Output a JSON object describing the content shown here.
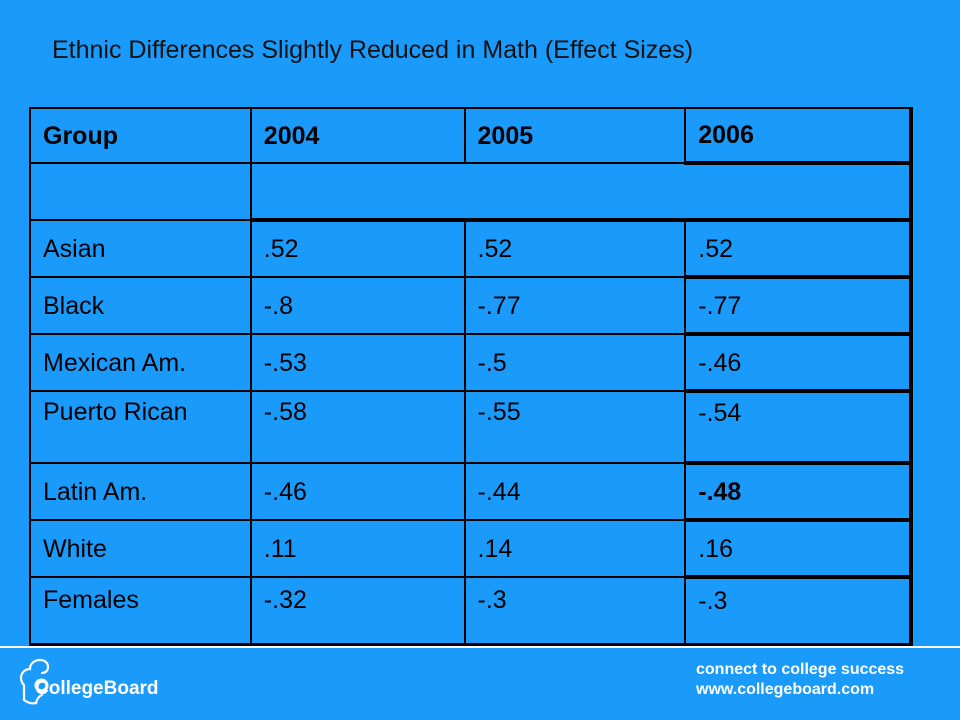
{
  "title": "Ethnic Differences Slightly Reduced in Math (Effect Sizes)",
  "table": {
    "headers": [
      "Group",
      "2004",
      "2005",
      "2006"
    ],
    "rows": [
      [
        "Asian",
        " .52",
        " .52",
        " .52"
      ],
      [
        "Black",
        "-.8",
        "-.77",
        "-.77"
      ],
      [
        "Mexican Am.",
        "-.53",
        "-.5",
        "-.46"
      ],
      [
        "Puerto Rican",
        "-.58",
        "-.55",
        "-.54"
      ],
      [
        "Latin Am.",
        "-.46",
        "-.44",
        "-.48"
      ],
      [
        "White",
        " .11",
        " .14",
        " .16"
      ],
      [
        "Females",
        "-.32",
        "-.3",
        "-.3"
      ]
    ]
  },
  "footer": {
    "logo_text": "CollegeBoard",
    "tagline_line1": "connect to college success",
    "tagline_line2": "www.collegeboard.com"
  }
}
